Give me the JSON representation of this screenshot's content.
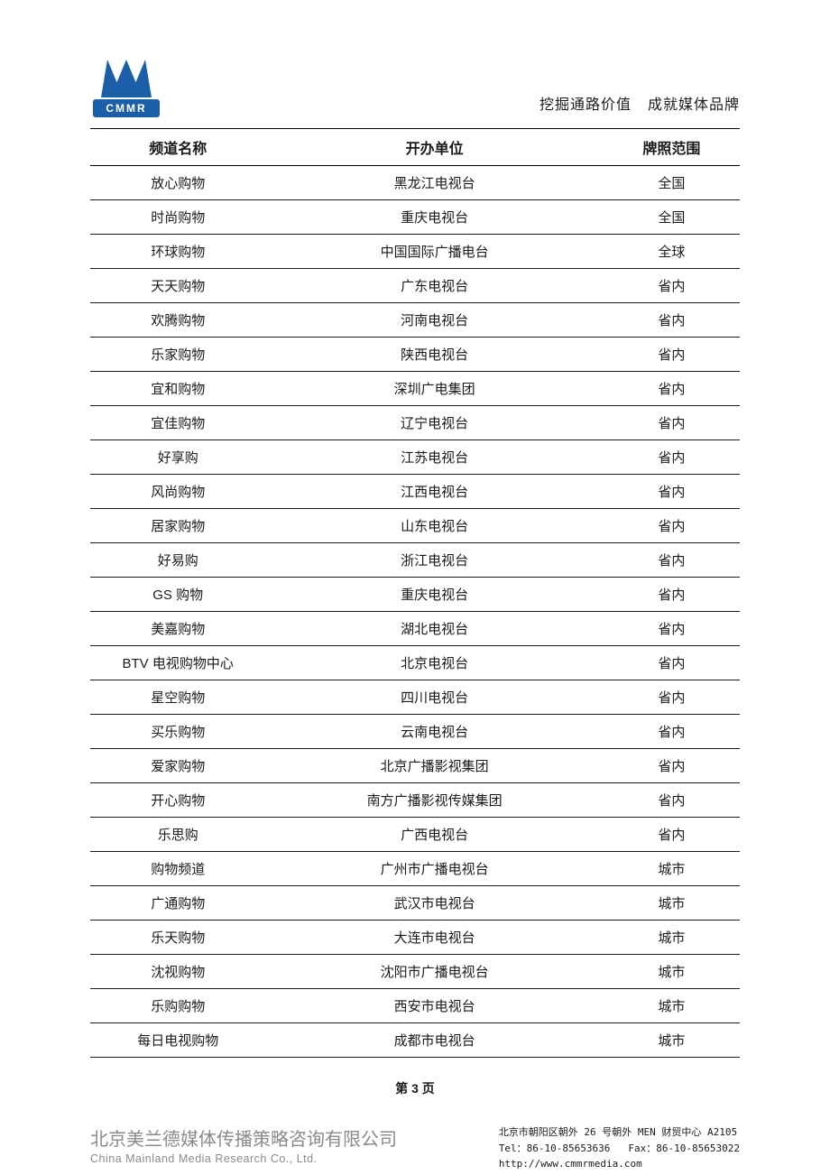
{
  "logo": {
    "label": "CMMR"
  },
  "slogan": {
    "part1": "挖掘通路价值",
    "part2": "成就媒体品牌"
  },
  "table": {
    "headers": {
      "col1": "频道名称",
      "col2": "开办单位",
      "col3": "牌照范围"
    },
    "rows": [
      {
        "c1": "放心购物",
        "c2": "黑龙江电视台",
        "c3": "全国"
      },
      {
        "c1": "时尚购物",
        "c2": "重庆电视台",
        "c3": "全国"
      },
      {
        "c1": "环球购物",
        "c2": "中国国际广播电台",
        "c3": "全球"
      },
      {
        "c1": "天天购物",
        "c2": "广东电视台",
        "c3": "省内"
      },
      {
        "c1": "欢腾购物",
        "c2": "河南电视台",
        "c3": "省内"
      },
      {
        "c1": "乐家购物",
        "c2": "陕西电视台",
        "c3": "省内"
      },
      {
        "c1": "宜和购物",
        "c2": "深圳广电集团",
        "c3": "省内"
      },
      {
        "c1": "宜佳购物",
        "c2": "辽宁电视台",
        "c3": "省内"
      },
      {
        "c1": "好享购",
        "c2": "江苏电视台",
        "c3": "省内"
      },
      {
        "c1": "风尚购物",
        "c2": "江西电视台",
        "c3": "省内"
      },
      {
        "c1": "居家购物",
        "c2": "山东电视台",
        "c3": "省内"
      },
      {
        "c1": "好易购",
        "c2": "浙江电视台",
        "c3": "省内"
      },
      {
        "c1": "GS 购物",
        "c2": "重庆电视台",
        "c3": "省内"
      },
      {
        "c1": "美嘉购物",
        "c2": "湖北电视台",
        "c3": "省内"
      },
      {
        "c1": "BTV 电视购物中心",
        "c2": "北京电视台",
        "c3": "省内"
      },
      {
        "c1": "星空购物",
        "c2": "四川电视台",
        "c3": "省内"
      },
      {
        "c1": "买乐购物",
        "c2": "云南电视台",
        "c3": "省内"
      },
      {
        "c1": "爱家购物",
        "c2": "北京广播影视集团",
        "c3": "省内"
      },
      {
        "c1": "开心购物",
        "c2": "南方广播影视传媒集团",
        "c3": "省内"
      },
      {
        "c1": "乐思购",
        "c2": "广西电视台",
        "c3": "省内"
      },
      {
        "c1": "购物频道",
        "c2": "广州市广播电视台",
        "c3": "城市"
      },
      {
        "c1": "广通购物",
        "c2": "武汉市电视台",
        "c3": "城市"
      },
      {
        "c1": "乐天购物",
        "c2": "大连市电视台",
        "c3": "城市"
      },
      {
        "c1": "沈视购物",
        "c2": "沈阳市广播电视台",
        "c3": "城市"
      },
      {
        "c1": "乐购购物",
        "c2": "西安市电视台",
        "c3": "城市"
      },
      {
        "c1": "每日电视购物",
        "c2": "成都市电视台",
        "c3": "城市"
      }
    ]
  },
  "pageNumber": "第 3 页",
  "footer": {
    "companyCn": "北京美兰德媒体传播策略咨询有限公司",
    "companyEn": "China Mainland Media Research Co., Ltd.",
    "address": "北京市朝阳区朝外 26 号朝外 MEN 财贸中心 A2105",
    "tel": "Tel：86-10-85653636",
    "fax": "Fax：86-10-85653022",
    "website": "http://www.cmmrmedia.com"
  },
  "colors": {
    "logoBlue": "#1b5fa8",
    "textDark": "#1a1a1a",
    "textGray": "#8a8a8a",
    "borderDark": "#000000",
    "background": "#ffffff"
  },
  "typography": {
    "sloganFontSize": 16,
    "headerFontSize": 16,
    "cellFontSize": 15,
    "pageNumFontSize": 14,
    "footerCnFontSize": 20,
    "footerEnFontSize": 12.5,
    "footerContactFontSize": 11
  }
}
